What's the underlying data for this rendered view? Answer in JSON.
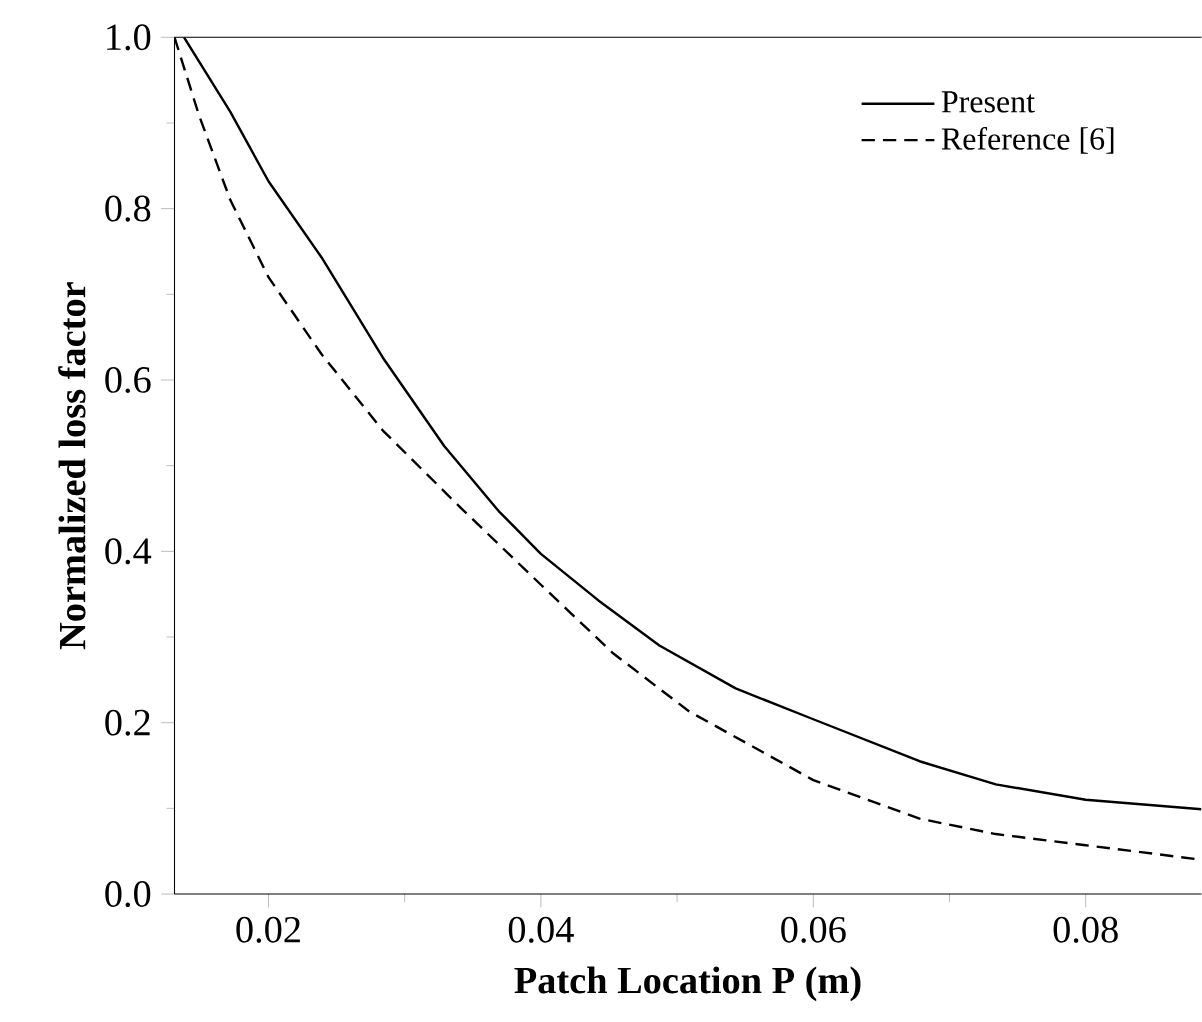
{
  "chart_data": {
    "type": "line",
    "xlabel": "Patch Location P (m)",
    "ylabel": "Normalized loss factor",
    "xlim": [
      0.0131,
      0.0885
    ],
    "xticks": [
      {
        "value": 0.02,
        "label": "0.02"
      },
      {
        "value": 0.04,
        "label": "0.04"
      },
      {
        "value": 0.06,
        "label": "0.06"
      },
      {
        "value": 0.08,
        "label": "0.08"
      }
    ],
    "ylim": [
      0,
      1
    ],
    "yticks": [
      {
        "value": 0,
        "label": "0.0"
      },
      {
        "value": 0.2,
        "label": "0.2"
      },
      {
        "value": 0.4,
        "label": "0.4"
      },
      {
        "value": 0.6,
        "label": "0.6"
      },
      {
        "value": 0.8,
        "label": "0.8"
      },
      {
        "value": 1,
        "label": "1.0"
      }
    ],
    "legend": "top right",
    "grid": false,
    "marker": "none",
    "series": [
      {
        "name": "Present",
        "color": "#000000",
        "line_style": "solid",
        "x": [
          0.0138,
          0.0172,
          0.02,
          0.0239,
          0.0284,
          0.0329,
          0.0369,
          0.04,
          0.0442,
          0.0487,
          0.0543,
          0.06,
          0.0678,
          0.0734,
          0.08,
          0.0885
        ],
        "values": [
          1.0,
          0.913,
          0.832,
          0.743,
          0.626,
          0.523,
          0.447,
          0.397,
          0.343,
          0.29,
          0.24,
          0.204,
          0.155,
          0.128,
          0.11,
          0.099
        ]
      },
      {
        "name": "Reference [6]",
        "color": "#000000",
        "line_style": "dashed",
        "x": [
          0.0131,
          0.0149,
          0.0172,
          0.02,
          0.0239,
          0.0284,
          0.0341,
          0.04,
          0.0453,
          0.0509,
          0.06,
          0.0678,
          0.0734,
          0.08,
          0.0885
        ],
        "values": [
          1.0,
          0.909,
          0.81,
          0.72,
          0.63,
          0.541,
          0.451,
          0.361,
          0.281,
          0.213,
          0.133,
          0.088,
          0.07,
          0.057,
          0.04
        ]
      }
    ]
  }
}
